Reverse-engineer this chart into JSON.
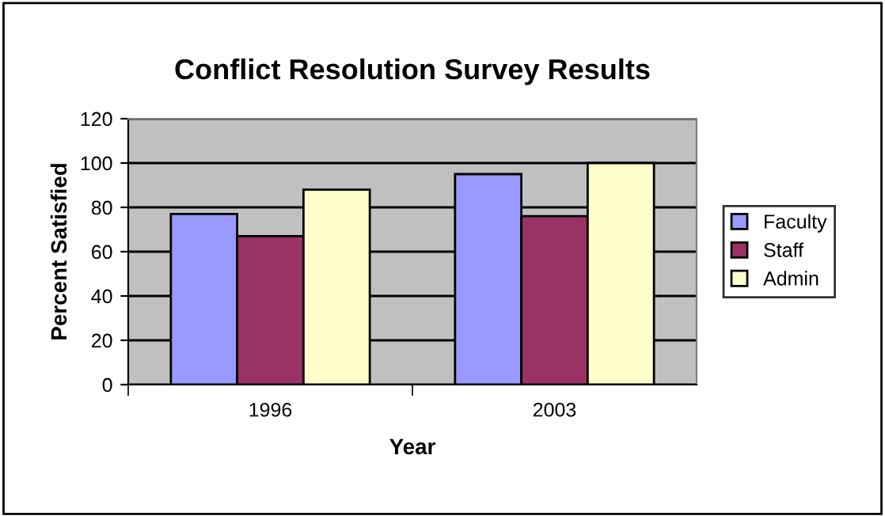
{
  "chart_data": {
    "type": "bar",
    "title": "Conflict Resolution Survey Results",
    "xlabel": "Year",
    "ylabel": "Percent Satisfied",
    "categories": [
      "1996",
      "2003"
    ],
    "series": [
      {
        "name": "Faculty",
        "color": "#9999ff",
        "values": [
          77,
          95
        ]
      },
      {
        "name": "Staff",
        "color": "#993366",
        "values": [
          67,
          76
        ]
      },
      {
        "name": "Admin",
        "color": "#ffffcc",
        "values": [
          88,
          100
        ]
      }
    ],
    "ylim": [
      0,
      120
    ],
    "yticks": [
      0,
      20,
      40,
      60,
      80,
      100,
      120
    ],
    "grid": "y",
    "legend": "right"
  }
}
